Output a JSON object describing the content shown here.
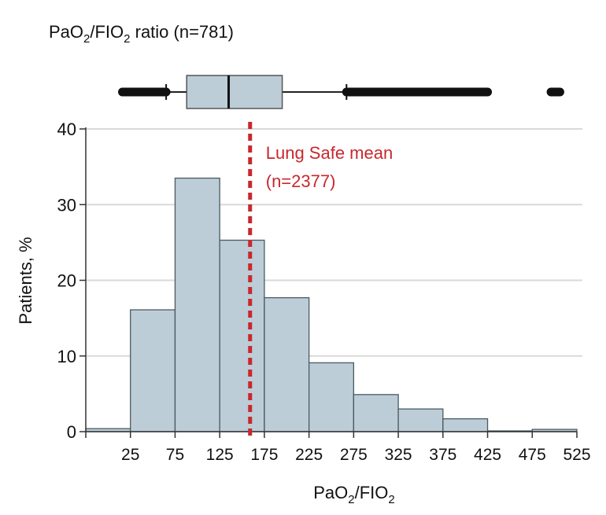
{
  "chart_data": {
    "type": "bar",
    "title": "PaO2/FIO2 ratio (n=781)",
    "title_parts": {
      "a": "PaO",
      "sub1": "2",
      "b": "/FIO",
      "sub2": "2",
      "c": " ratio (n=781)"
    },
    "xlabel": "PaO2/FIO2",
    "xlabel_parts": {
      "a": "PaO",
      "sub1": "2",
      "b": "/FIO",
      "sub2": "2"
    },
    "ylabel": "Patients, %",
    "ylim": [
      0,
      40
    ],
    "xlim": [
      -25,
      525
    ],
    "yticks": [
      "0",
      "10",
      "20",
      "30",
      "40"
    ],
    "xticks": [
      "25",
      "75",
      "125",
      "175",
      "225",
      "275",
      "325",
      "375",
      "425",
      "475",
      "525"
    ],
    "bins": [
      [
        -25,
        25
      ],
      [
        25,
        75
      ],
      [
        75,
        125
      ],
      [
        125,
        175
      ],
      [
        175,
        225
      ],
      [
        225,
        275
      ],
      [
        275,
        325
      ],
      [
        325,
        375
      ],
      [
        375,
        425
      ],
      [
        425,
        475
      ],
      [
        475,
        525
      ]
    ],
    "values": [
      0.4,
      16.1,
      33.5,
      25.3,
      17.7,
      9.1,
      4.9,
      3.0,
      1.7,
      0.1,
      0.3
    ],
    "grid": true,
    "reference_line": {
      "x": 159,
      "label_line1": "Lung Safe mean",
      "label_line2": "(n=2377)",
      "color": "#c8282d"
    },
    "boxplot": {
      "q1": 88,
      "median": 135,
      "q3": 195,
      "whisker_low": 65,
      "whisker_high": 267,
      "outliers_low_range": [
        16,
        65
      ],
      "outliers_high_range": [
        267,
        425
      ],
      "outliers_far": [
        496,
        506
      ]
    },
    "colors": {
      "bar": "#bccdd7",
      "bar_edge": "#4a5a62",
      "grid": "#d9d9d9"
    }
  }
}
